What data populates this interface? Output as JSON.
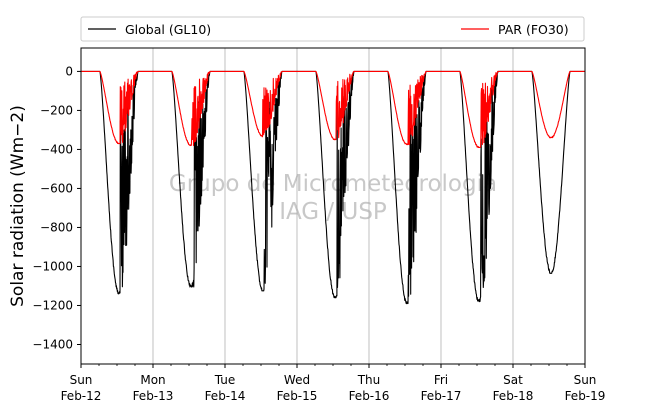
{
  "chart_data": {
    "type": "line",
    "ylabel": "Solar radiation ($Wm{-2}$)",
    "ylabel_display": "Solar radiation (Wm−2)",
    "ylim": [
      -1500,
      120
    ],
    "yticks": [
      0,
      -200,
      -400,
      -600,
      -800,
      -1000,
      -1200,
      -1400
    ],
    "xlim": [
      "2012-02-12",
      "2012-02-19"
    ],
    "xticks": [
      {
        "day": "Sun",
        "date": "Feb-12"
      },
      {
        "day": "Mon",
        "date": "Feb-13"
      },
      {
        "day": "Tue",
        "date": "Feb-14"
      },
      {
        "day": "Wed",
        "date": "Feb-15"
      },
      {
        "day": "Thu",
        "date": "Feb-16"
      },
      {
        "day": "Fri",
        "date": "Feb-17"
      },
      {
        "day": "Sat",
        "date": "Feb-18"
      },
      {
        "day": "Sun",
        "date": "Feb-19"
      }
    ],
    "grid": "vertical-major",
    "legend_location": "top, above plot",
    "watermark": [
      "Grupo de Micrometeorologia",
      "IAG / USP"
    ],
    "series": [
      {
        "name": "Global (GL10)",
        "color": "#000000",
        "daily_min": [
          -1140,
          -1105,
          -1125,
          -1160,
          -1190,
          -1180,
          -1035
        ],
        "sunrise_hour": 6.3,
        "sunset_hour": 19.0,
        "cloudy_after_hour": [
          13.0,
          13.5,
          13.0,
          13.3,
          13.0,
          13.2,
          99
        ]
      },
      {
        "name": "PAR (FO30)",
        "color": "#ff0000",
        "daily_min": [
          -370,
          -380,
          -335,
          -350,
          -375,
          -390,
          -340
        ],
        "sunrise_hour": 6.3,
        "sunset_hour": 19.0,
        "cloudy_after_hour": [
          13.0,
          12.8,
          12.5,
          13.0,
          13.0,
          13.2,
          99
        ]
      }
    ]
  }
}
